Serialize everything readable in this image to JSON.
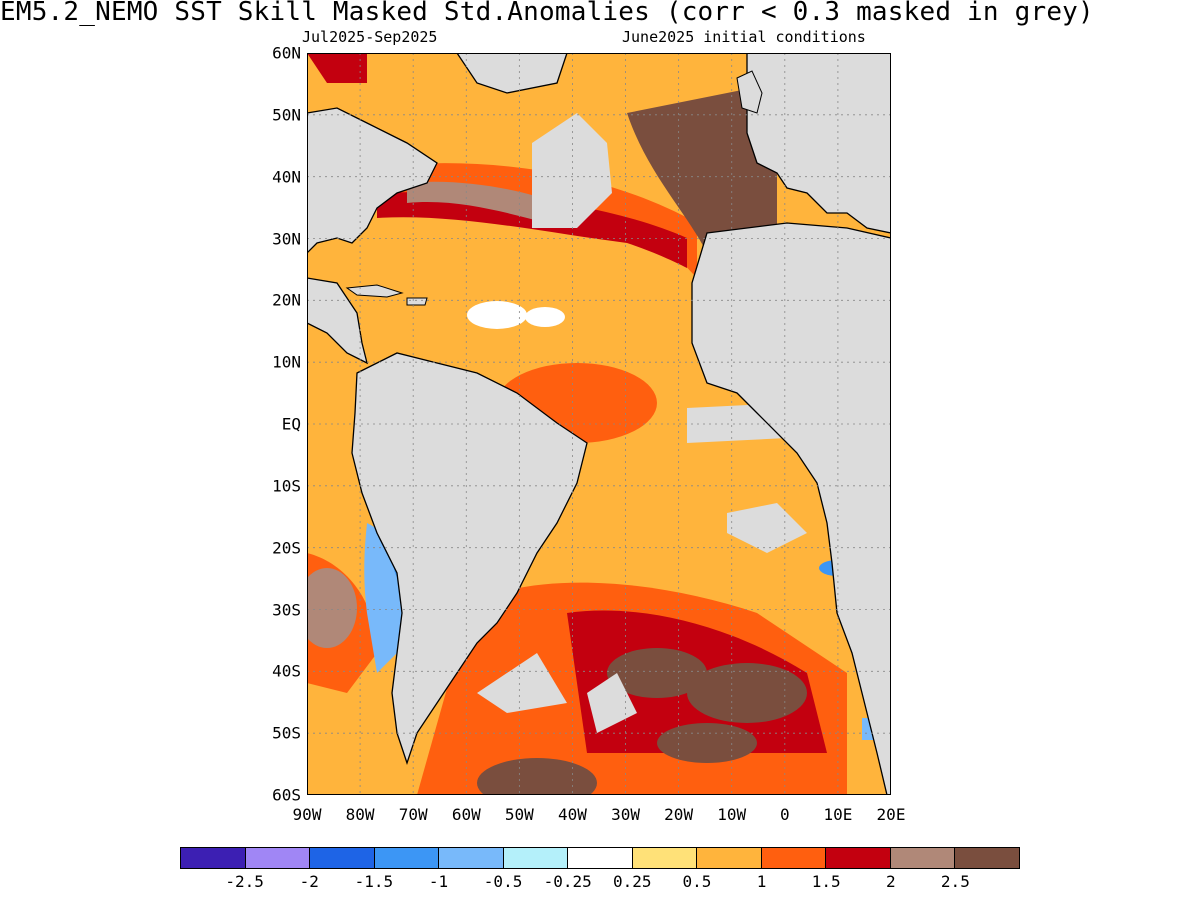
{
  "header": {
    "title": "EM5.2_NEMO  SST Skill Masked Std.Anomalies (corr < 0.3 masked in grey)",
    "period": "Jul2025-Sep2025",
    "init": "June2025 initial conditions"
  },
  "axes": {
    "lat_labels": [
      "60N",
      "50N",
      "40N",
      "30N",
      "20N",
      "10N",
      "EQ",
      "10S",
      "20S",
      "30S",
      "40S",
      "50S",
      "60S"
    ],
    "lon_labels": [
      "90W",
      "80W",
      "70W",
      "60W",
      "50W",
      "40W",
      "30W",
      "20W",
      "10W",
      "0",
      "10E",
      "20E"
    ]
  },
  "colorbar": {
    "colors": [
      "#3c1fb3",
      "#a086f5",
      "#1e64e6",
      "#3c96f5",
      "#78b9fa",
      "#b4f0fa",
      "#ffffff",
      "#ffe178",
      "#ffb43c",
      "#ff5f0f",
      "#c3000f",
      "#b08878",
      "#7a4e3e"
    ],
    "labels": [
      "-2.5",
      "-2",
      "-1.5",
      "-1",
      "-0.5",
      "-0.25",
      "0.25",
      "0.5",
      "1",
      "1.5",
      "2",
      "2.5"
    ]
  },
  "colors": {
    "land": "#dcdcdc",
    "mask_grey": "#dcdcdc"
  }
}
